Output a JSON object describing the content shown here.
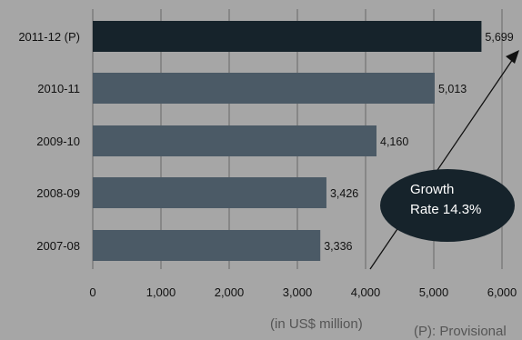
{
  "chart_data": {
    "type": "bar",
    "orientation": "horizontal",
    "categories": [
      "2011-12 (P)",
      "2010-11",
      "2009-10",
      "2008-09",
      "2007-08"
    ],
    "values": [
      5699,
      5013,
      4160,
      3426,
      3336
    ],
    "value_labels": [
      "5,699",
      "5,013",
      "4,160",
      "3,426",
      "3,336"
    ],
    "xlim": [
      0,
      6000
    ],
    "x_ticks": [
      0,
      1000,
      2000,
      3000,
      4000,
      5000,
      6000
    ],
    "x_tick_labels": [
      "0",
      "1,000",
      "2,000",
      "3,000",
      "4,000",
      "5,000",
      "6,000"
    ],
    "grid": "vertical",
    "colors": {
      "background": "#a6a6a6",
      "highlight_bar": "#16232b",
      "bar": "#4b5a66",
      "grid": "#7d7d7d",
      "ellipse": "#16232b"
    },
    "unit_label": "(in US$ million)",
    "footnote": "(P): Provisional",
    "annotation": {
      "line1": "Growth",
      "line2": "Rate 14.3%"
    }
  }
}
